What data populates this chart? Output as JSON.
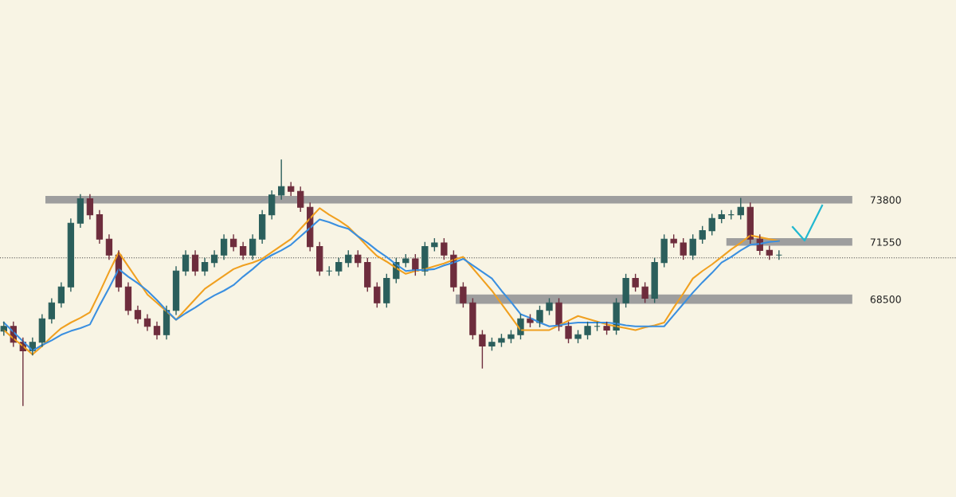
{
  "chart_data": {
    "type": "candlestick",
    "categories": [
      null,
      null,
      null,
      null,
      null,
      null,
      null,
      null,
      null,
      null,
      null,
      null,
      null,
      null,
      null,
      null,
      null,
      null,
      null,
      null,
      null,
      null,
      null,
      null,
      null,
      null,
      null,
      null,
      null,
      null,
      null,
      null,
      null,
      null,
      null,
      null,
      null,
      null,
      null,
      null,
      null,
      null,
      null,
      null,
      null,
      null,
      null,
      null,
      null,
      null,
      null,
      null,
      null,
      null,
      null,
      null,
      null,
      null,
      null,
      null,
      null,
      null,
      null,
      null,
      null,
      null,
      null,
      null,
      null,
      null,
      null,
      null,
      null,
      null,
      null,
      null,
      null,
      null,
      null,
      null,
      null,
      null
    ],
    "colors": [
      "#2b5f5c",
      "#6e2d3d",
      "#6e2d3d",
      "#2b5f5c",
      "#2b5f5c",
      "#2b5f5c",
      "#2b5f5c",
      "#2b5f5c",
      "#2b5f5c",
      "#6e2d3d",
      "#6e2d3d",
      "#6e2d3d",
      "#6e2d3d",
      "#6e2d3d",
      "#6e2d3d",
      "#6e2d3d",
      "#6e2d3d",
      "#2b5f5c",
      "#2b5f5c",
      "#2b5f5c",
      "#6e2d3d",
      "#2b5f5c",
      "#2b5f5c",
      "#2b5f5c",
      "#6e2d3d",
      "#6e2d3d",
      "#2b5f5c",
      "#2b5f5c",
      "#2b5f5c",
      "#2b5f5c",
      "#6e2d3d",
      "#6e2d3d",
      "#6e2d3d",
      "#6e2d3d",
      "#2b5f5c",
      "#2b5f5c",
      "#2b5f5c",
      "#6e2d3d",
      "#6e2d3d",
      "#6e2d3d",
      "#2b5f5c",
      "#2b5f5c",
      "#2b5f5c",
      "#6e2d3d",
      "#2b5f5c",
      "#2b5f5c",
      "#6e2d3d",
      "#6e2d3d",
      "#6e2d3d",
      "#6e2d3d",
      "#6e2d3d",
      "#2b5f5c",
      "#2b5f5c",
      "#2b5f5c",
      "#2b5f5c",
      "#6e2d3d",
      "#2b5f5c",
      "#2b5f5c",
      "#6e2d3d",
      "#6e2d3d",
      "#2b5f5c",
      "#2b5f5c",
      "#2b5f5c",
      "#6e2d3d",
      "#2b5f5c",
      "#2b5f5c",
      "#6e2d3d",
      "#6e2d3d",
      "#2b5f5c",
      "#2b5f5c",
      "#6e2d3d",
      "#6e2d3d",
      "#2b5f5c",
      "#2b5f5c",
      "#2b5f5c",
      "#2b5f5c",
      "#2b5f5c",
      "#2b5f5c",
      "#6e2d3d",
      "#6e2d3d",
      "#6e2d3d",
      "#2b5f5c"
    ],
    "ylim": [
      57950,
      84450
    ],
    "yticks": [
      68500,
      71550,
      73800
    ],
    "grid": false,
    "ohlc": [
      [
        66800,
        67300,
        66550,
        67050
      ],
      [
        67050,
        67300,
        65950,
        66200
      ],
      [
        66200,
        66450,
        62800,
        65750
      ],
      [
        65750,
        66450,
        65500,
        66200
      ],
      [
        66200,
        67700,
        65950,
        67450
      ],
      [
        67450,
        68550,
        67200,
        68300
      ],
      [
        68300,
        69400,
        68050,
        69150
      ],
      [
        69150,
        72800,
        68900,
        72550
      ],
      [
        72550,
        74100,
        72300,
        73850
      ],
      [
        73850,
        74100,
        72750,
        73000
      ],
      [
        73000,
        73250,
        71450,
        71700
      ],
      [
        71700,
        71950,
        70600,
        70850
      ],
      [
        70850,
        71100,
        68900,
        69150
      ],
      [
        69150,
        69400,
        67650,
        67900
      ],
      [
        67900,
        68150,
        67200,
        67450
      ],
      [
        67450,
        67700,
        66800,
        67050
      ],
      [
        67050,
        67300,
        66350,
        66600
      ],
      [
        66600,
        68150,
        66350,
        67900
      ],
      [
        67900,
        70250,
        67650,
        70000
      ],
      [
        70000,
        71100,
        69750,
        70850
      ],
      [
        70850,
        71100,
        69750,
        70000
      ],
      [
        70000,
        70700,
        69750,
        70450
      ],
      [
        70450,
        71100,
        70200,
        70850
      ],
      [
        70850,
        71950,
        70600,
        71700
      ],
      [
        71700,
        71950,
        71050,
        71300
      ],
      [
        71300,
        71550,
        70600,
        70850
      ],
      [
        70850,
        71950,
        70600,
        71700
      ],
      [
        71700,
        73250,
        71450,
        73000
      ],
      [
        73000,
        74300,
        72750,
        74050
      ],
      [
        74050,
        75950,
        73800,
        74500
      ],
      [
        74500,
        74750,
        74000,
        74250
      ],
      [
        74250,
        74500,
        73150,
        73400
      ],
      [
        73400,
        73650,
        71050,
        71300
      ],
      [
        71300,
        71550,
        69750,
        70000
      ],
      [
        70000,
        70250,
        69750,
        70000
      ],
      [
        70000,
        70700,
        69750,
        70450
      ],
      [
        70450,
        71100,
        70200,
        70850
      ],
      [
        70850,
        71100,
        70200,
        70450
      ],
      [
        70450,
        70700,
        68900,
        69150
      ],
      [
        69150,
        69400,
        68050,
        68300
      ],
      [
        68300,
        69850,
        68050,
        69600
      ],
      [
        69600,
        70700,
        69350,
        70450
      ],
      [
        70450,
        70900,
        70200,
        70650
      ],
      [
        70650,
        70900,
        69750,
        70000
      ],
      [
        70000,
        71550,
        69750,
        71300
      ],
      [
        71300,
        71750,
        71050,
        71500
      ],
      [
        71500,
        71750,
        70600,
        70850
      ],
      [
        70850,
        71100,
        68900,
        69150
      ],
      [
        69150,
        69400,
        68050,
        68300
      ],
      [
        68300,
        68550,
        66350,
        66600
      ],
      [
        66600,
        66850,
        64800,
        66000
      ],
      [
        66000,
        66450,
        65750,
        66200
      ],
      [
        66200,
        66650,
        65950,
        66400
      ],
      [
        66400,
        66850,
        66150,
        66600
      ],
      [
        66600,
        67700,
        66350,
        67450
      ],
      [
        67450,
        67700,
        67000,
        67250
      ],
      [
        67250,
        68150,
        67000,
        67900
      ],
      [
        67900,
        68550,
        67650,
        68300
      ],
      [
        68300,
        68550,
        66800,
        67050
      ],
      [
        67050,
        67300,
        66150,
        66400
      ],
      [
        66400,
        66850,
        66150,
        66600
      ],
      [
        66600,
        67300,
        66350,
        67050
      ],
      [
        67050,
        67300,
        66800,
        67050
      ],
      [
        67050,
        67300,
        66600,
        66850
      ],
      [
        66850,
        68550,
        66600,
        68300
      ],
      [
        68300,
        69850,
        68050,
        69600
      ],
      [
        69600,
        69850,
        68900,
        69150
      ],
      [
        69150,
        69400,
        68300,
        68550
      ],
      [
        68550,
        70700,
        68300,
        70450
      ],
      [
        70450,
        71950,
        70200,
        71700
      ],
      [
        71700,
        71950,
        71250,
        71500
      ],
      [
        71500,
        71750,
        70600,
        70850
      ],
      [
        70850,
        71950,
        70600,
        71700
      ],
      [
        71700,
        72400,
        71450,
        72150
      ],
      [
        72150,
        73050,
        71900,
        72800
      ],
      [
        72800,
        73250,
        72550,
        73000
      ],
      [
        73000,
        73250,
        72750,
        73000
      ],
      [
        73000,
        73900,
        72750,
        73400
      ],
      [
        73400,
        73650,
        71450,
        71700
      ],
      [
        71700,
        71950,
        70850,
        71100
      ],
      [
        71100,
        71350,
        70600,
        70850
      ],
      [
        70850,
        71100,
        70600,
        70850
      ]
    ],
    "series": [
      {
        "type": "line",
        "color": "#f0a020",
        "values": [
          66850,
          66400,
          66000,
          65550,
          66000,
          66500,
          66950,
          67250,
          67500,
          67800,
          68850,
          69950,
          71000,
          70250,
          69500,
          68750,
          68300,
          67850,
          67400,
          67950,
          68500,
          69050,
          69400,
          69750,
          70100,
          70300,
          70450,
          70650,
          71000,
          71350,
          71700,
          72250,
          72800,
          73350,
          73000,
          72700,
          72350,
          71850,
          71300,
          70800,
          70500,
          70150,
          69850,
          70000,
          70100,
          70250,
          70400,
          70600,
          70750,
          70150,
          69550,
          68950,
          68250,
          67550,
          66850,
          66850,
          66850,
          66850,
          67100,
          67350,
          67600,
          67450,
          67300,
          67150,
          67050,
          66950,
          66850,
          67000,
          67100,
          67250,
          68050,
          68800,
          69600,
          70000,
          70350,
          70750,
          71150,
          71500,
          71900,
          71800,
          71700,
          71600
        ]
      },
      {
        "type": "line",
        "color": "#3a8fe0",
        "values": [
          67250,
          66750,
          66250,
          65750,
          66050,
          66300,
          66600,
          66800,
          66950,
          67150,
          68150,
          69100,
          70100,
          69700,
          69350,
          68950,
          68450,
          67900,
          67400,
          67750,
          68050,
          68400,
          68700,
          68950,
          69250,
          69700,
          70100,
          70550,
          70850,
          71100,
          71400,
          71850,
          72300,
          72750,
          72600,
          72400,
          72250,
          71850,
          71500,
          71100,
          70750,
          70350,
          70000,
          70050,
          70050,
          70100,
          70300,
          70450,
          70650,
          70300,
          69950,
          69600,
          68950,
          68350,
          67700,
          67500,
          67250,
          67050,
          67100,
          67200,
          67250,
          67250,
          67250,
          67250,
          67200,
          67100,
          67050,
          67050,
          67050,
          67050,
          67650,
          68250,
          68850,
          69400,
          69900,
          70450,
          70750,
          71100,
          71400,
          71450,
          71550,
          71600
        ]
      }
    ],
    "bands": [
      {
        "axis": "y",
        "from": 73600,
        "to": 74000,
        "color": "#9e9e9e"
      },
      {
        "axis": "y",
        "from": 71350,
        "to": 71750,
        "color": "#9e9e9e"
      },
      {
        "axis": "y",
        "from": 68250,
        "to": 68750,
        "color": "#9e9e9e"
      }
    ],
    "ref_lines": [
      {
        "axis": "y",
        "value": 70700,
        "label": null,
        "color": "#444444",
        "line_style": "dotted"
      }
    ]
  }
}
